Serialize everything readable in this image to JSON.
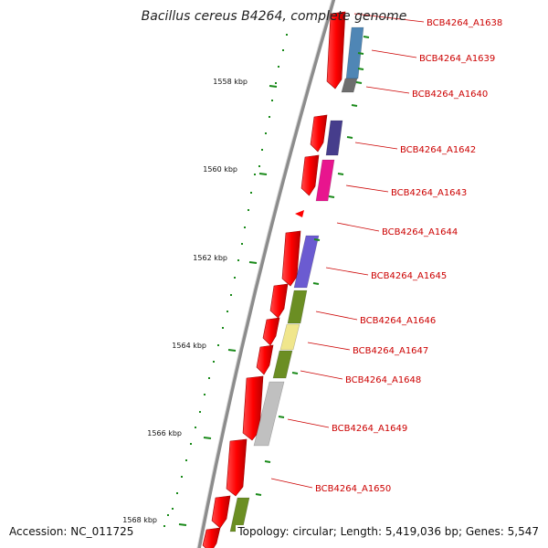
{
  "title": "Bacillus cereus B4264, complete genome",
  "accession": "Accession: NC_011725",
  "topology": "Topology: circular; Length: 5,419,036 bp; Genes: 5,547",
  "kbp_ticks": [
    "1558 kbp",
    "1560 kbp",
    "1562 kbp",
    "1564 kbp",
    "1566 kbp",
    "1568 kbp"
  ],
  "genes": [
    {
      "label": "BCB4264_A1638",
      "color": "#ff0000"
    },
    {
      "label": "BCB4264_A1639",
      "color": "#4f86b5"
    },
    {
      "label": "BCB4264_A1640",
      "color": "#6e6e6e"
    },
    {
      "label": "BCB4264_A1642",
      "color": "#463d8c"
    },
    {
      "label": "BCB4264_A1643",
      "color": "#e8158e"
    },
    {
      "label": "BCB4264_A1644",
      "color": "#ff0000"
    },
    {
      "label": "BCB4264_A1645",
      "color": "#6b5bd1"
    },
    {
      "label": "BCB4264_A1646",
      "color": "#6b8e23"
    },
    {
      "label": "BCB4264_A1647",
      "color": "#f0e68c"
    },
    {
      "label": "BCB4264_A1648",
      "color": "#6b8e23"
    },
    {
      "label": "BCB4264_A1649",
      "color": "#c0c0c0"
    },
    {
      "label": "BCB4264_A1650",
      "color": "#ff0000"
    }
  ],
  "colors": {
    "backbone": "#808080",
    "cds_forward": "#ff0000",
    "tick": "#1a8a1a",
    "label": "#cc0000"
  }
}
